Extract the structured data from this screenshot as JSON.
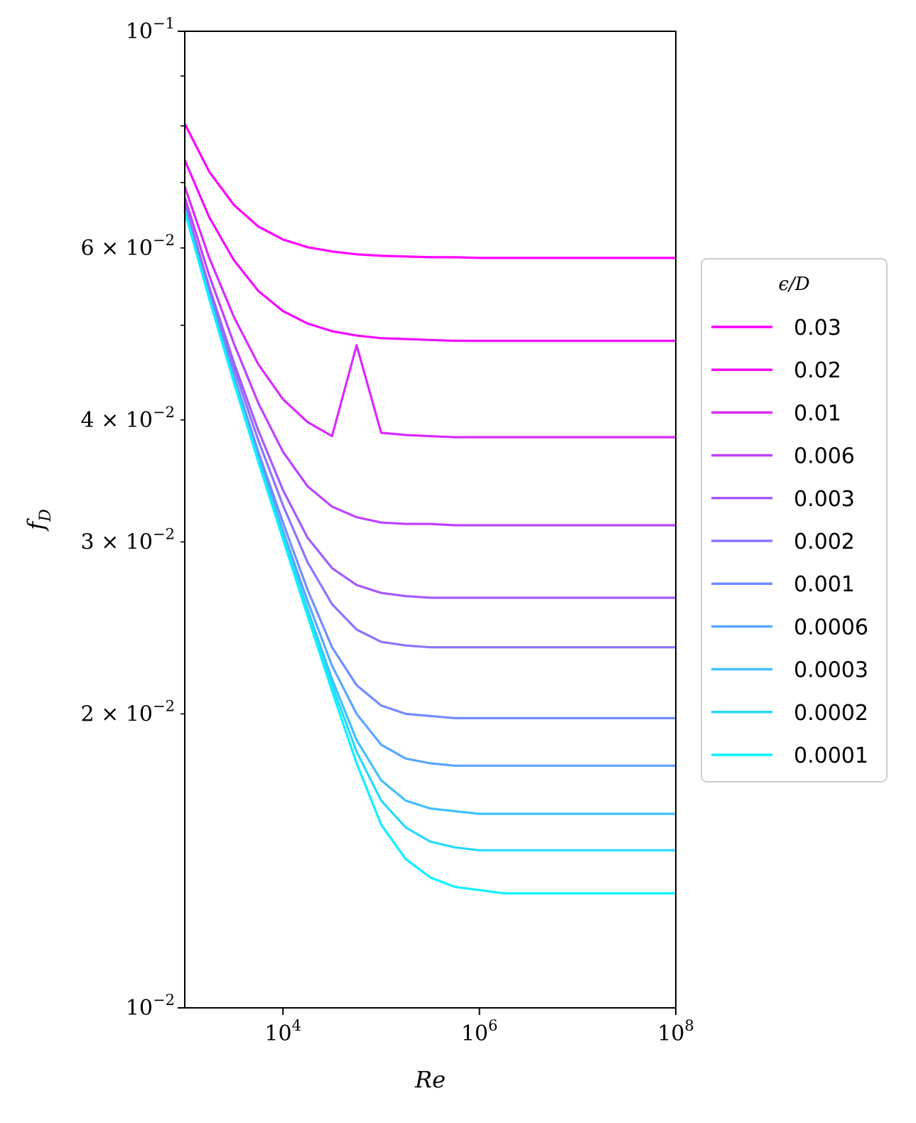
{
  "chart_data": {
    "type": "line",
    "xlabel": "Re",
    "ylabel": "f_D",
    "x_scale": "log",
    "y_scale": "log",
    "xlim": [
      1000,
      100000000
    ],
    "ylim": [
      0.01,
      0.1
    ],
    "grid": false,
    "x_ticks": [
      {
        "value": 10000,
        "base": "10",
        "exp": "4"
      },
      {
        "value": 1000000,
        "base": "10",
        "exp": "6"
      },
      {
        "value": 100000000,
        "base": "10",
        "exp": "8"
      }
    ],
    "y_major_ticks": [
      {
        "value": 0.1,
        "mant": "",
        "base": "10",
        "exp": "−1"
      },
      {
        "value": 0.01,
        "mant": "",
        "base": "10",
        "exp": "−2"
      }
    ],
    "y_minor_labeled_ticks": [
      {
        "value": 0.06,
        "mant": "6",
        "base": "10",
        "exp": "−2"
      },
      {
        "value": 0.04,
        "mant": "4",
        "base": "10",
        "exp": "−2"
      },
      {
        "value": 0.03,
        "mant": "3",
        "base": "10",
        "exp": "−2"
      },
      {
        "value": 0.02,
        "mant": "2",
        "base": "10",
        "exp": "−2"
      }
    ],
    "y_minor_unlabeled_ticks": [
      0.09,
      0.08,
      0.07,
      0.05
    ],
    "legend": {
      "title": "ϵ/D",
      "placement": "center-right, outside plot"
    },
    "x": [
      1000,
      1778,
      3162,
      5623,
      10000,
      17783,
      31623,
      56234,
      100000,
      177828,
      316228,
      562341,
      1000000,
      1778279,
      3162278,
      5623413,
      10000000,
      17782794,
      31622777,
      56234133,
      100000000
    ],
    "series": [
      {
        "name": "0.03",
        "color": "#ff00ff",
        "values": [
          0.0804,
          0.0718,
          0.0664,
          0.0631,
          0.0612,
          0.0601,
          0.0595,
          0.0591,
          0.0589,
          0.0588,
          0.0587,
          0.0587,
          0.0586,
          0.0586,
          0.0586,
          0.0586,
          0.0586,
          0.0586,
          0.0586,
          0.0586,
          0.0586
        ]
      },
      {
        "name": "0.02",
        "color": "#f20dff",
        "values": [
          0.0738,
          0.0645,
          0.0583,
          0.0542,
          0.0517,
          0.0502,
          0.0493,
          0.0488,
          0.0485,
          0.0484,
          0.0483,
          0.0482,
          0.0482,
          0.0482,
          0.0482,
          0.0482,
          0.0482,
          0.0482,
          0.0482,
          0.0482,
          0.0482
        ]
      },
      {
        "name": "0.01",
        "color": "#d92aff",
        "values": [
          0.0693,
          0.0586,
          0.051,
          0.0456,
          0.042,
          0.0398,
          0.0385,
          0.0477,
          0.0388,
          0.0386,
          0.0385,
          0.0384,
          0.0384,
          0.0384,
          0.0384,
          0.0384,
          0.0384,
          0.0384,
          0.0384,
          0.0384,
          0.0384
        ]
      },
      {
        "name": "0.006",
        "color": "#bf40ff",
        "values": [
          0.0676,
          0.0562,
          0.0479,
          0.0416,
          0.0371,
          0.0342,
          0.0326,
          0.0318,
          0.0314,
          0.0313,
          0.0313,
          0.0312,
          0.0312,
          0.0312,
          0.0312,
          0.0312,
          0.0312,
          0.0312,
          0.0312,
          0.0312,
          0.0312
        ]
      },
      {
        "name": "0.003",
        "color": "#a559ff",
        "values": [
          0.0665,
          0.0547,
          0.0458,
          0.039,
          0.0339,
          0.0303,
          0.0282,
          0.0271,
          0.0266,
          0.0264,
          0.0263,
          0.0263,
          0.0263,
          0.0263,
          0.0263,
          0.0263,
          0.0263,
          0.0263,
          0.0263,
          0.0263,
          0.0263
        ]
      },
      {
        "name": "0.002",
        "color": "#8c73ff",
        "values": [
          0.0662,
          0.0542,
          0.0452,
          0.0381,
          0.0327,
          0.0286,
          0.0259,
          0.0244,
          0.0237,
          0.0235,
          0.0234,
          0.0234,
          0.0234,
          0.0234,
          0.0234,
          0.0234,
          0.0234,
          0.0234,
          0.0234,
          0.0234,
          0.0234
        ]
      },
      {
        "name": "0.001",
        "color": "#728cff",
        "values": [
          0.0658,
          0.0537,
          0.0444,
          0.0371,
          0.0314,
          0.0268,
          0.0234,
          0.0214,
          0.0204,
          0.02,
          0.0199,
          0.0198,
          0.0198,
          0.0198,
          0.0198,
          0.0198,
          0.0198,
          0.0198,
          0.0198,
          0.0198,
          0.0198
        ]
      },
      {
        "name": "0.0006",
        "color": "#59a6ff",
        "values": [
          0.0656,
          0.0535,
          0.0441,
          0.0367,
          0.0308,
          0.0261,
          0.0224,
          0.02,
          0.0186,
          0.018,
          0.0178,
          0.0177,
          0.0177,
          0.0177,
          0.0177,
          0.0177,
          0.0177,
          0.0177,
          0.0177,
          0.0177,
          0.0177
        ]
      },
      {
        "name": "0.0003",
        "color": "#40bfff",
        "values": [
          0.0655,
          0.0533,
          0.0439,
          0.0364,
          0.0305,
          0.0256,
          0.0217,
          0.0188,
          0.0171,
          0.0163,
          0.016,
          0.0159,
          0.0158,
          0.0158,
          0.0158,
          0.0158,
          0.0158,
          0.0158,
          0.0158,
          0.0158,
          0.0158
        ]
      },
      {
        "name": "0.0002",
        "color": "#26d9ff",
        "values": [
          0.0654,
          0.0532,
          0.0438,
          0.0363,
          0.0304,
          0.0254,
          0.0214,
          0.0183,
          0.0163,
          0.0153,
          0.0148,
          0.0146,
          0.0145,
          0.0145,
          0.0145,
          0.0145,
          0.0145,
          0.0145,
          0.0145,
          0.0145,
          0.0145
        ]
      },
      {
        "name": "0.0001",
        "color": "#0df2ff",
        "values": [
          0.0654,
          0.0532,
          0.0437,
          0.0362,
          0.0302,
          0.0252,
          0.0211,
          0.0178,
          0.0154,
          0.0142,
          0.0136,
          0.0133,
          0.0132,
          0.0131,
          0.0131,
          0.0131,
          0.0131,
          0.0131,
          0.0131,
          0.0131,
          0.0131
        ]
      }
    ]
  }
}
